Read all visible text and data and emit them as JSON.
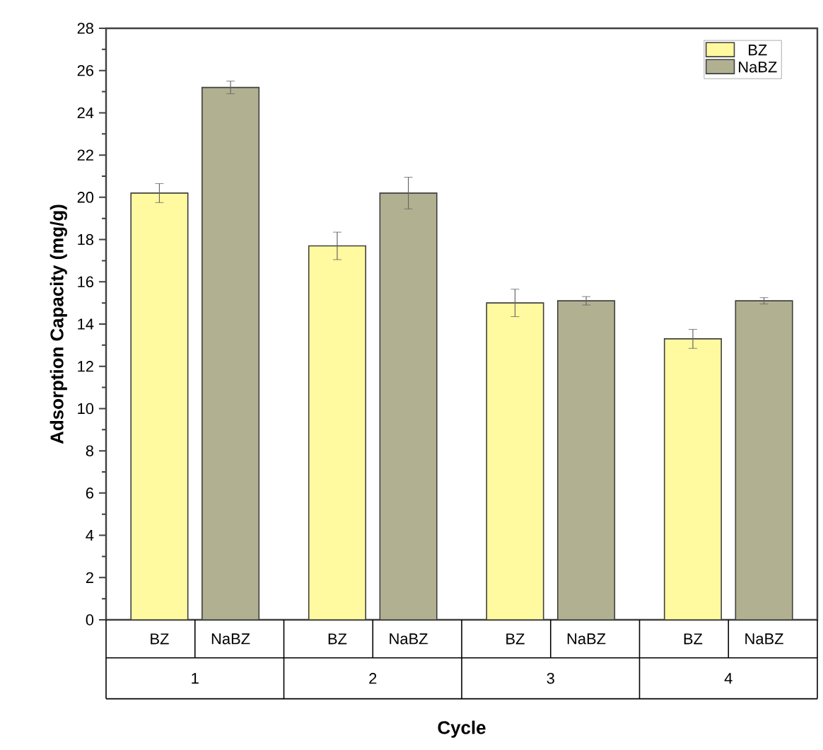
{
  "chart_data": {
    "type": "bar",
    "xlabel": "Cycle",
    "ylabel": "Adsorption Capacity (mg/g)",
    "categories": [
      "1",
      "2",
      "3",
      "4"
    ],
    "series": [
      {
        "name": "BZ",
        "color": "#fff99f",
        "values": [
          20.2,
          17.7,
          15.0,
          13.3
        ],
        "errors": [
          0.45,
          0.65,
          0.65,
          0.45
        ]
      },
      {
        "name": "NaBZ",
        "color": "#b1b192",
        "values": [
          25.2,
          20.2,
          15.1,
          15.1
        ],
        "errors": [
          0.3,
          0.75,
          0.2,
          0.15
        ]
      }
    ],
    "ylim": [
      0,
      28
    ],
    "yticks": [
      0,
      2,
      4,
      6,
      8,
      10,
      12,
      14,
      16,
      18,
      20,
      22,
      24,
      26,
      28
    ],
    "legend": "top right"
  }
}
